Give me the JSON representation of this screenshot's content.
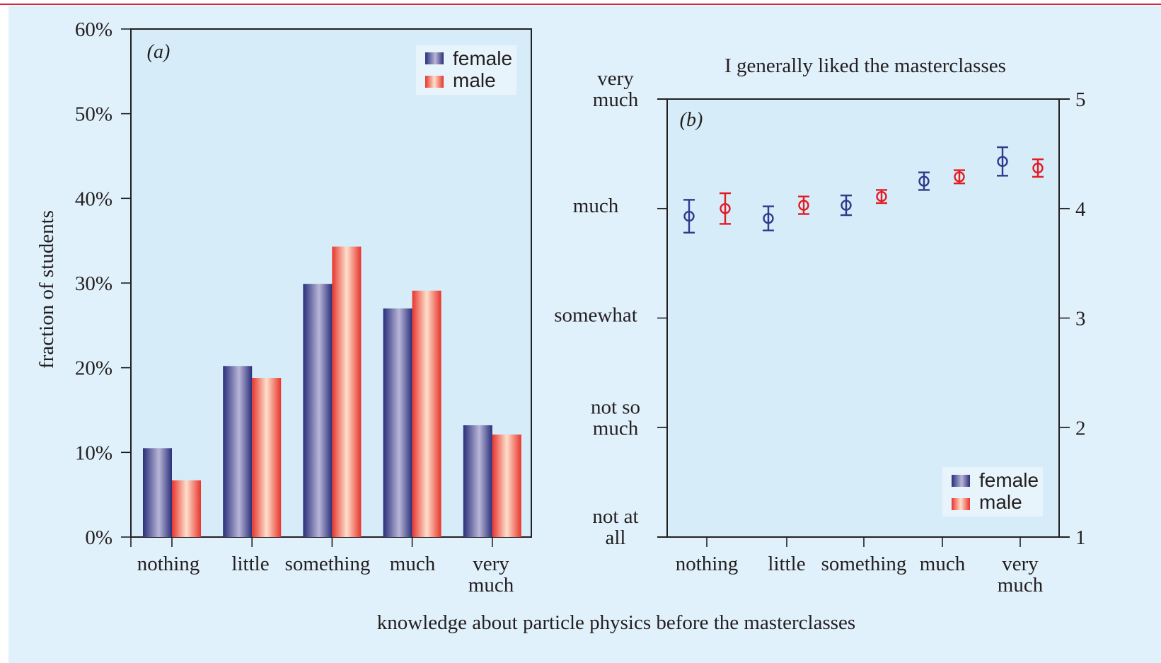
{
  "colors": {
    "page_background": "#e1f1fb",
    "plot_background": "#d6ecf8",
    "top_rule": "#d7263d",
    "axis": "#231f20",
    "female": "#2e3a8c",
    "male": "#e31b23",
    "female_gradient": [
      "#2a2f7a",
      "#b9b6d8",
      "#2a2f7a"
    ],
    "male_gradient": [
      "#e8342c",
      "#fde0cc",
      "#e8342c"
    ]
  },
  "common": {
    "xlabel": "knowledge about particle physics before the masterclasses"
  },
  "chart_data": [
    {
      "type": "bar",
      "panel_label": "(a)",
      "ylabel": "fraction of students",
      "categories": [
        "nothing",
        "little",
        "something",
        "much",
        "very\nmuch"
      ],
      "series": [
        {
          "name": "female",
          "values": [
            10.5,
            20.2,
            29.9,
            27.0,
            13.2
          ]
        },
        {
          "name": "male",
          "values": [
            6.7,
            18.8,
            34.3,
            29.1,
            12.1
          ]
        }
      ],
      "ylim": [
        0,
        60
      ],
      "yticks": [
        0,
        10,
        20,
        30,
        40,
        50,
        60
      ],
      "ytick_labels": [
        "0%",
        "10%",
        "20%",
        "30%",
        "40%",
        "50%",
        "60%"
      ],
      "legend": [
        "female",
        "male"
      ],
      "legend_position": "top-right",
      "grid": false
    },
    {
      "type": "scatter",
      "panel_label": "(b)",
      "title": "I generally liked the masterclasses",
      "categories": [
        "nothing",
        "little",
        "something",
        "much",
        "very\nmuch"
      ],
      "series": [
        {
          "name": "female",
          "values": [
            3.93,
            3.91,
            4.03,
            4.25,
            4.43
          ],
          "errors": [
            0.15,
            0.11,
            0.09,
            0.08,
            0.13
          ]
        },
        {
          "name": "male",
          "values": [
            4.0,
            4.03,
            4.11,
            4.29,
            4.37
          ],
          "errors": [
            0.14,
            0.08,
            0.06,
            0.06,
            0.08
          ]
        }
      ],
      "ylim": [
        1,
        5
      ],
      "yticks": [
        1,
        2,
        3,
        4,
        5
      ],
      "ytick_labels_left": [
        "not at\nall",
        "not so\nmuch",
        "somewhat",
        "much",
        "very\nmuch"
      ],
      "ytick_labels_right": [
        "1",
        "2",
        "3",
        "4",
        "5"
      ],
      "legend": [
        "female",
        "male"
      ],
      "legend_position": "bottom-right",
      "grid": false
    }
  ]
}
